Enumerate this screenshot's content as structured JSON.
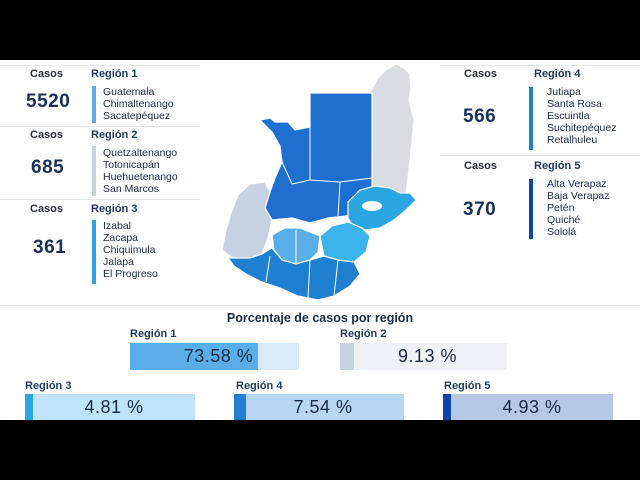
{
  "colors": {
    "region1": "#5aaee8",
    "region2": "#c6d2e2",
    "region3": "#2aa6e3",
    "region4": "#1f7fd0",
    "region5": "#0c46a8",
    "peten": "#d9dde2"
  },
  "regions": [
    {
      "casos_label": "Casos",
      "title": "Región 1",
      "cases": "5520",
      "departments": [
        "Guatemala",
        "Chimaltenango",
        "Sacatepéquez"
      ]
    },
    {
      "casos_label": "Casos",
      "title": "Región 2",
      "cases": "685",
      "departments": [
        "Quetzaltenango",
        "Totonicapán",
        "Huehuetenango",
        "San Marcos"
      ]
    },
    {
      "casos_label": "Casos",
      "title": "Región 3",
      "cases": "361",
      "departments": [
        "Izabal",
        "Zacapa",
        "Chiquimula",
        "Jalapa",
        "El Progreso"
      ]
    },
    {
      "casos_label": "Casos",
      "title": "Región 4",
      "cases": "566",
      "departments": [
        "Jutiapa",
        "Santa Rosa",
        "Escuintla",
        "Suchitepéquez",
        "Retalhuleu"
      ]
    },
    {
      "casos_label": "Casos",
      "title": "Región 5",
      "cases": "370",
      "departments": [
        "Alta Verapaz",
        "Baja Verapaz",
        "Petén",
        "Quiché",
        "Sololá"
      ]
    }
  ],
  "percent_section": {
    "title": "Porcentaje de casos por región",
    "items": [
      {
        "label": "Región 1",
        "value": "73.58 %"
      },
      {
        "label": "Región 2",
        "value": "9.13 %"
      },
      {
        "label": "Región 3",
        "value": "4.81 %"
      },
      {
        "label": "Región 4",
        "value": "7.54 %"
      },
      {
        "label": "Región 5",
        "value": "4.93 %"
      }
    ]
  }
}
